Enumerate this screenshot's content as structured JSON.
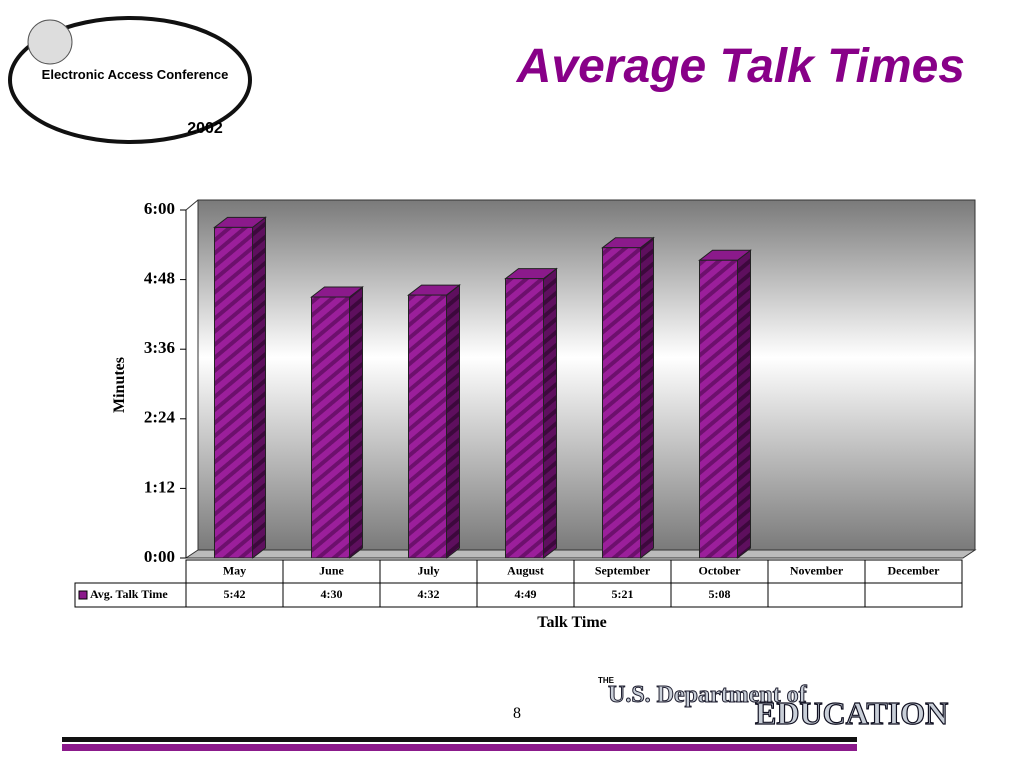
{
  "logo": {
    "name": "Electronic Access Conference",
    "year": "2002"
  },
  "chart_data": {
    "type": "bar",
    "title": "Average Talk Times",
    "x_label": "Talk Time",
    "y_label": "Minutes",
    "categories": [
      "May",
      "June",
      "July",
      "August",
      "September",
      "October",
      "November",
      "December"
    ],
    "series": [
      {
        "name": "Avg. Talk Time",
        "color": "#8b1a8b",
        "values": [
          5.7,
          4.5,
          4.5333,
          4.8167,
          5.35,
          5.1333,
          null,
          null
        ],
        "value_labels": [
          "5:42",
          "4:30",
          "4:32",
          "4:49",
          "5:21",
          "5:08",
          null,
          null
        ]
      }
    ],
    "ylim": [
      0,
      6
    ],
    "yticks": [
      {
        "value": 0,
        "label": "0:00"
      },
      {
        "value": 1.2,
        "label": "1:12"
      },
      {
        "value": 2.4,
        "label": "2:24"
      },
      {
        "value": 3.6,
        "label": "3:36"
      },
      {
        "value": 4.8,
        "label": "4:48"
      },
      {
        "value": 6,
        "label": "6:00"
      }
    ]
  },
  "footer": {
    "page": "8",
    "the": "THE",
    "department": "U.S. Department of",
    "education": "EDUCATION"
  }
}
